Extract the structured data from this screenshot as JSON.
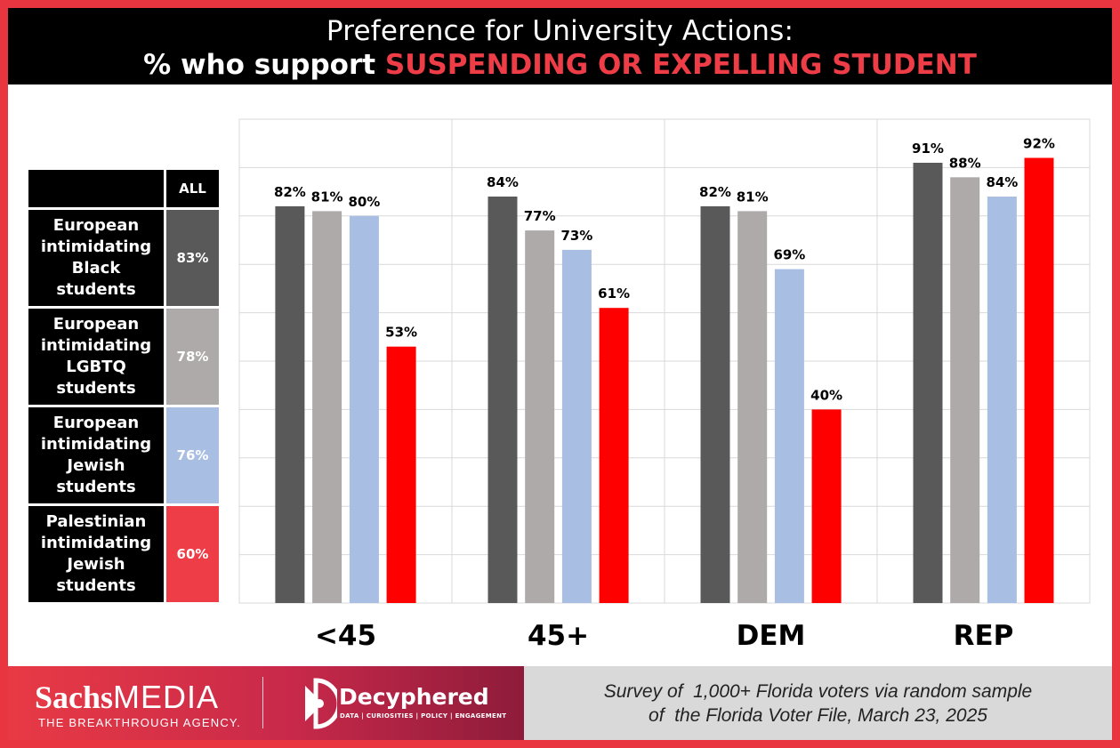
{
  "header": {
    "title_line1": "Preference for University Actions:",
    "title_line2_prefix": "% who support ",
    "title_line2_highlight": "SUSPENDING OR EXPELLING STUDENT"
  },
  "legend": {
    "header_label": "",
    "header_value": "ALL",
    "rows": [
      {
        "label_lines": [
          "European",
          "intimidating",
          "Black",
          "students"
        ],
        "value": "83%",
        "color": "#595959"
      },
      {
        "label_lines": [
          "European",
          "intimidating",
          "LGBTQ",
          "students"
        ],
        "value": "78%",
        "color": "#aeaaaa"
      },
      {
        "label_lines": [
          "European",
          "intimidating",
          "Jewish",
          "students"
        ],
        "value": "76%",
        "color": "#a9bee3"
      },
      {
        "label_lines": [
          "Palestinian",
          "intimidating",
          "Jewish",
          "students"
        ],
        "value": "60%",
        "color": "#ee3d46"
      }
    ]
  },
  "chart_data": {
    "type": "bar",
    "title": "Preference for University Actions: % who support SUSPENDING OR EXPELLING STUDENT",
    "categories": [
      "<45",
      "45+",
      "DEM",
      "REP"
    ],
    "ylim": [
      0,
      100
    ],
    "grid": true,
    "series": [
      {
        "name": "European intimidating Black students",
        "values": [
          82,
          84,
          82,
          91
        ],
        "labels": [
          "82%",
          "84%",
          "82%",
          "91%"
        ],
        "color": "#595959"
      },
      {
        "name": "European intimidating LGBTQ students",
        "values": [
          81,
          77,
          81,
          88
        ],
        "labels": [
          "81%",
          "77%",
          "81%",
          "88%"
        ],
        "color": "#aeaaaa"
      },
      {
        "name": "European intimidating Jewish students",
        "values": [
          80,
          73,
          69,
          84
        ],
        "labels": [
          "80%",
          "73%",
          "69%",
          "84%"
        ],
        "color": "#a9bee3"
      },
      {
        "name": "Palestinian intimidating Jewish students",
        "values": [
          53,
          61,
          40,
          92
        ],
        "labels": [
          "53%",
          "61%",
          "40%",
          "92%"
        ],
        "color": "#ff0000"
      }
    ]
  },
  "footer": {
    "sachs_bold": "Sachs",
    "sachs_light": "MEDIA",
    "sachs_tagline": "THE BREAKTHROUGH AGENCY.",
    "decyphered_name": "Decyphered",
    "decyphered_tagline": "DATA | CURIOSITIES | POLICY | ENGAGEMENT",
    "source_line1": "Survey of  1,000+ Florida voters via random sample",
    "source_line2": "of  the Florida Voter File, March 23, 2025"
  }
}
